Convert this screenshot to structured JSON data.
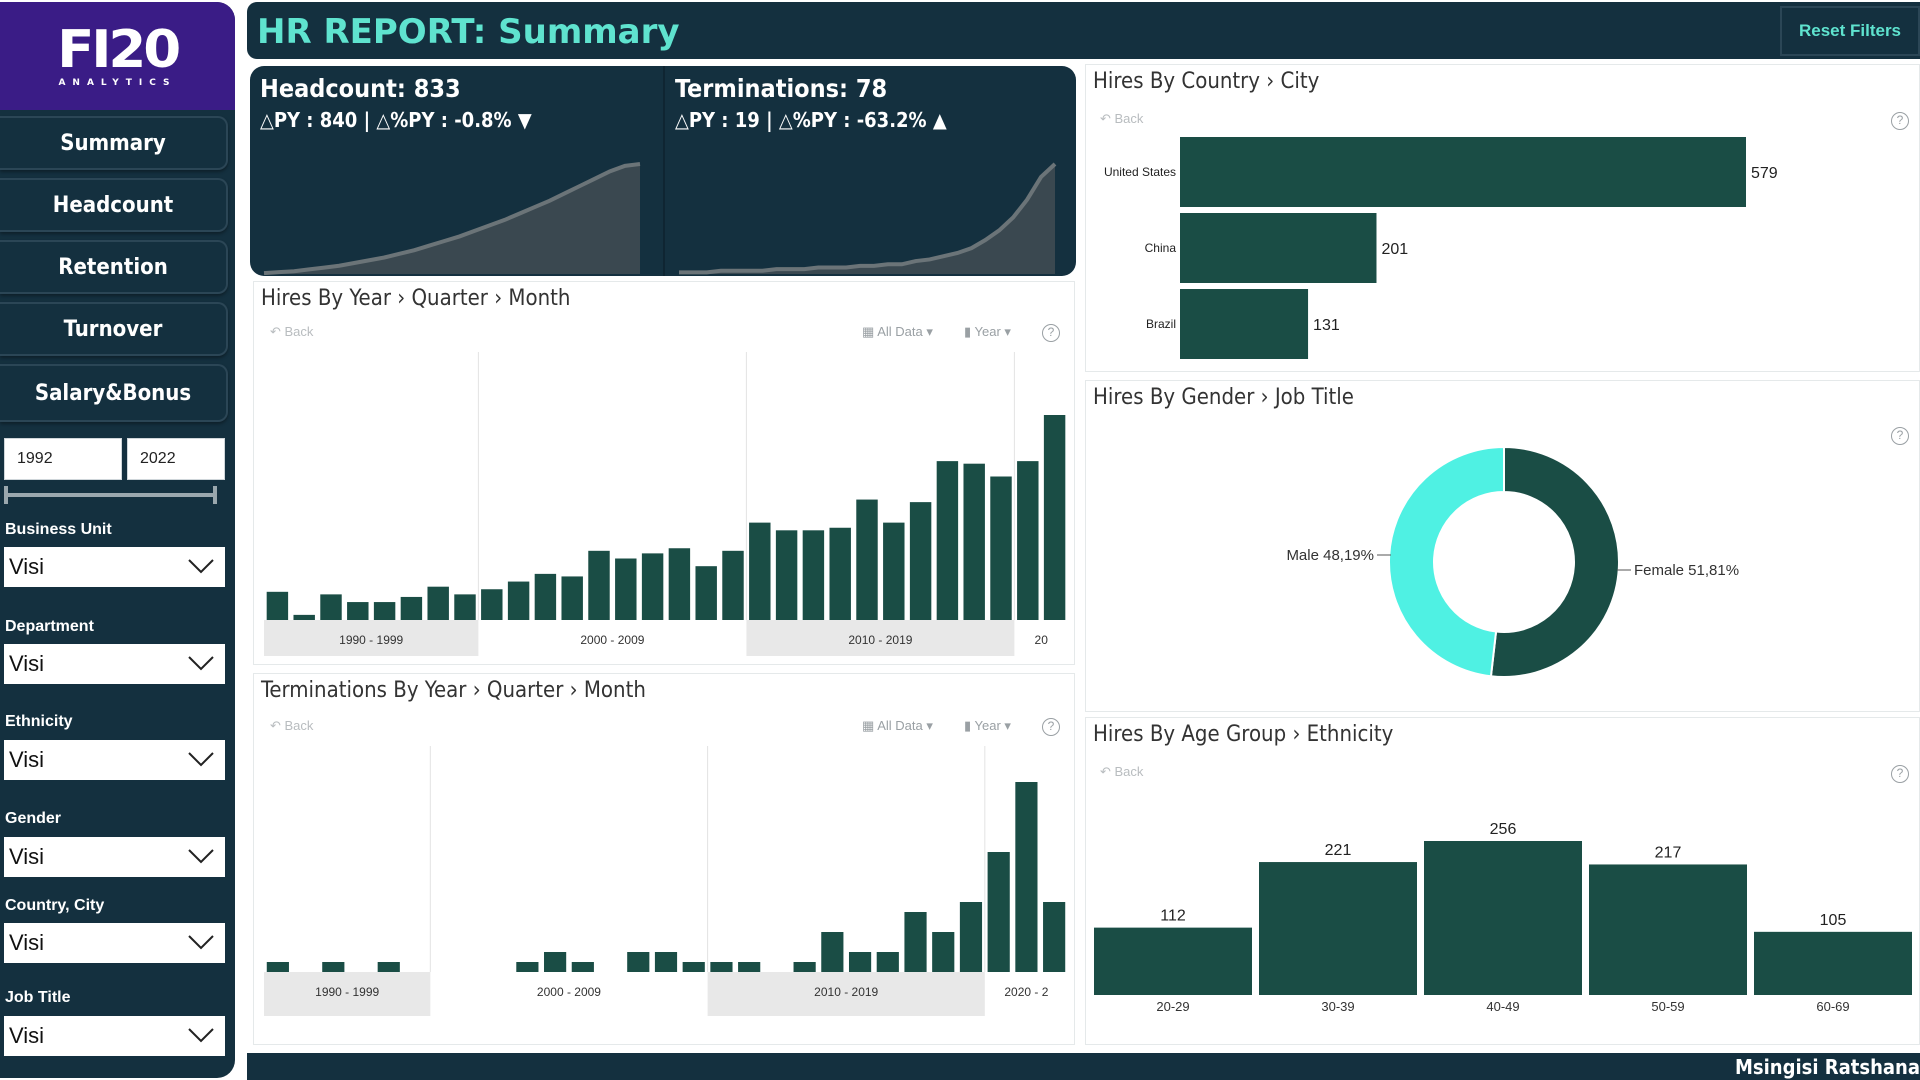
{
  "sidebar": {
    "logo_main": "FI20",
    "logo_sub": "ANALYTICS",
    "nav": [
      "Summary",
      "Headcount",
      "Retention",
      "Turnover",
      "Salary&Bonus"
    ],
    "year_from": "1992",
    "year_to": "2022",
    "filters": [
      {
        "label": "Business Unit",
        "value": "Visi"
      },
      {
        "label": "Department",
        "value": "Visi"
      },
      {
        "label": "Ethnicity",
        "value": "Visi"
      },
      {
        "label": "Gender",
        "value": "Visi"
      },
      {
        "label": "Country, City",
        "value": "Visi"
      },
      {
        "label": "Job Title",
        "value": "Visi"
      }
    ]
  },
  "header": {
    "title": "HR REPORT: Summary",
    "reset_label": "Reset Filters"
  },
  "kpis": [
    {
      "title": "Headcount: 833",
      "sub": "△PY : 840 | △%PY :  -0.8% ▼"
    },
    {
      "title": "Terminations: 78",
      "sub": "△PY : 19 | △%PY :  -63.2% ▲"
    }
  ],
  "panels": {
    "hires_year": {
      "title": "Hires By Year › Quarter › Month",
      "back": "Back",
      "all_data": "All Data ▾",
      "year": "Year ▾"
    },
    "terms_year": {
      "title": "Terminations By Year › Quarter › Month",
      "back": "Back",
      "all_data": "All Data ▾",
      "year": "Year ▾"
    },
    "hires_country": {
      "title": "Hires By Country › City",
      "back": "Back"
    },
    "hires_gender": {
      "title": "Hires By Gender › Job Title"
    },
    "hires_age": {
      "title": "Hires By Age Group › Ethnicity",
      "back": "Back"
    }
  },
  "footer": {
    "text": "Msingisi Ratshana"
  },
  "colors": {
    "bar": "#1a4d45",
    "cyan": "#4ff1e3",
    "navy": "#14303f",
    "accent": "#5fe3cf"
  },
  "chart_data": [
    {
      "type": "area",
      "title": "Headcount: 833",
      "values": [
        1,
        2,
        3,
        5,
        7,
        9,
        12,
        15,
        18,
        22,
        26,
        31,
        36,
        41,
        47,
        53,
        59,
        66,
        73,
        80,
        88,
        96,
        104,
        112,
        118,
        120
      ]
    },
    {
      "type": "area",
      "title": "Terminations: 78",
      "values": [
        1,
        1,
        1,
        2,
        2,
        2,
        2,
        3,
        3,
        3,
        4,
        4,
        4,
        5,
        5,
        6,
        6,
        8,
        9,
        11,
        13,
        16,
        21,
        27,
        35,
        46,
        60,
        68
      ]
    },
    {
      "type": "bar",
      "title": "Hires By Year › Quarter › Month",
      "groups": [
        "1990 - 1999",
        "2000 - 2009",
        "2010 - 2019",
        "20"
      ],
      "values": [
        11,
        2,
        10,
        7,
        7,
        9,
        13,
        10,
        12,
        15,
        18,
        17,
        27,
        24,
        26,
        28,
        21,
        27,
        38,
        35,
        35,
        36,
        47,
        38,
        46,
        62,
        61,
        56,
        62,
        80
      ]
    },
    {
      "type": "bar",
      "title": "Terminations By Year › Quarter › Month",
      "groups": [
        "1990 - 1999",
        "2000 - 2009",
        "2010 - 2019",
        "2020 - 2"
      ],
      "values": [
        1,
        0,
        1,
        0,
        1,
        0,
        0,
        0,
        0,
        1,
        2,
        1,
        0,
        2,
        2,
        1,
        1,
        1,
        0,
        1,
        4,
        2,
        2,
        6,
        4,
        7,
        12,
        19,
        7
      ]
    },
    {
      "type": "bar",
      "title": "Hires By Country › City",
      "categories": [
        "United States",
        "China",
        "Brazil"
      ],
      "values": [
        579,
        201,
        131
      ]
    },
    {
      "type": "pie",
      "title": "Hires By Gender › Job Title",
      "categories": [
        "Female",
        "Male"
      ],
      "values": [
        51.81,
        48.19
      ],
      "labels": [
        "Female 51,81%",
        "Male 48,19%"
      ]
    },
    {
      "type": "bar",
      "title": "Hires By Age Group › Ethnicity",
      "categories": [
        "20-29",
        "30-39",
        "40-49",
        "50-59",
        "60-69"
      ],
      "values": [
        112,
        221,
        256,
        217,
        105
      ]
    }
  ]
}
